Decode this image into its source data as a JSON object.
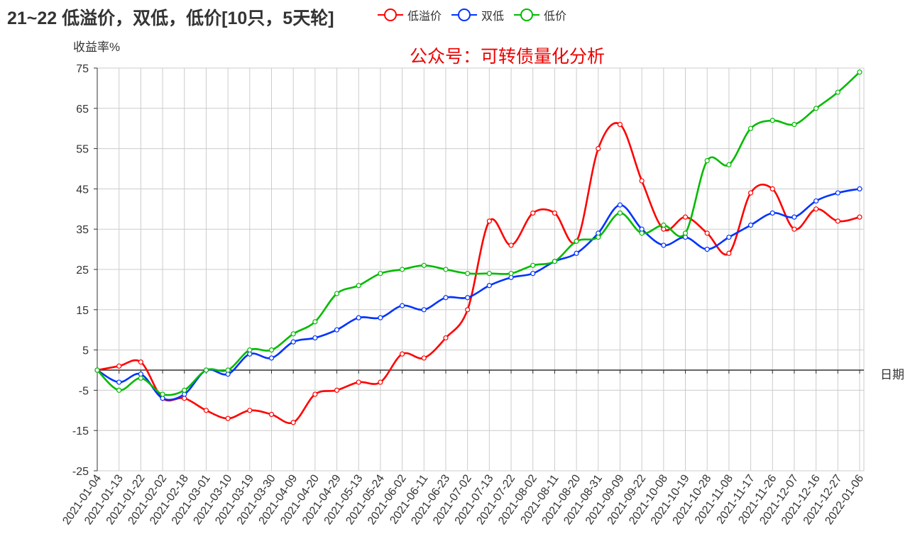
{
  "header": {
    "title": "21~22 低溢价，双低，低价[10只，5天轮]",
    "watermark": "公众号：可转债量化分析"
  },
  "legend": [
    {
      "label": "低溢价",
      "color": "#ff0000"
    },
    {
      "label": "双低",
      "color": "#0033ff"
    },
    {
      "label": "低价",
      "color": "#00bb00"
    }
  ],
  "chart_data": {
    "type": "line",
    "title": "21~22 低溢价，双低，低价[10只，5天轮]",
    "ylabel": "收益率%",
    "xlabel": "日期",
    "ylim": [
      -25,
      75
    ],
    "yticks": [
      75,
      65,
      55,
      45,
      35,
      25,
      15,
      5,
      -5,
      -15,
      -25
    ],
    "grid": true,
    "legend_position": "top",
    "x": [
      "2021-01-04",
      "2021-01-13",
      "2021-01-22",
      "2021-02-02",
      "2021-02-18",
      "2021-03-01",
      "2021-03-10",
      "2021-03-19",
      "2021-03-30",
      "2021-04-09",
      "2021-04-20",
      "2021-04-29",
      "2021-05-13",
      "2021-05-24",
      "2021-06-02",
      "2021-06-11",
      "2021-06-23",
      "2021-07-02",
      "2021-07-13",
      "2021-07-22",
      "2021-08-02",
      "2021-08-11",
      "2021-08-20",
      "2021-08-31",
      "2021-09-09",
      "2021-09-22",
      "2021-10-08",
      "2021-10-19",
      "2021-10-28",
      "2021-11-08",
      "2021-11-17",
      "2021-11-26",
      "2021-12-07",
      "2021-12-16",
      "2021-12-27",
      "2022-01-06"
    ],
    "series": [
      {
        "name": "低溢价",
        "color": "#ff0000",
        "values": [
          0,
          1,
          2,
          -7,
          -7,
          -10,
          -12,
          -10,
          -11,
          -13,
          -6,
          -5,
          -3,
          -3,
          4,
          3,
          8,
          15,
          37,
          31,
          39,
          39,
          32,
          55,
          61,
          47,
          35,
          38,
          34,
          29,
          44,
          45,
          35,
          40,
          37,
          38
        ]
      },
      {
        "name": "双低",
        "color": "#0033ff",
        "values": [
          0,
          -3,
          -1,
          -7,
          -6,
          0,
          -1,
          4,
          3,
          7,
          8,
          10,
          13,
          13,
          16,
          15,
          18,
          18,
          21,
          23,
          24,
          27,
          29,
          34,
          41,
          35,
          31,
          33,
          30,
          33,
          36,
          39,
          38,
          42,
          44,
          45
        ]
      },
      {
        "name": "低价",
        "color": "#00bb00",
        "values": [
          0,
          -5,
          -2,
          -6,
          -5,
          0,
          0,
          5,
          5,
          9,
          12,
          19,
          21,
          24,
          25,
          26,
          25,
          24,
          24,
          24,
          26,
          27,
          32,
          33,
          39,
          34,
          36,
          34,
          52,
          51,
          60,
          62,
          61,
          65,
          69,
          74
        ]
      }
    ]
  }
}
